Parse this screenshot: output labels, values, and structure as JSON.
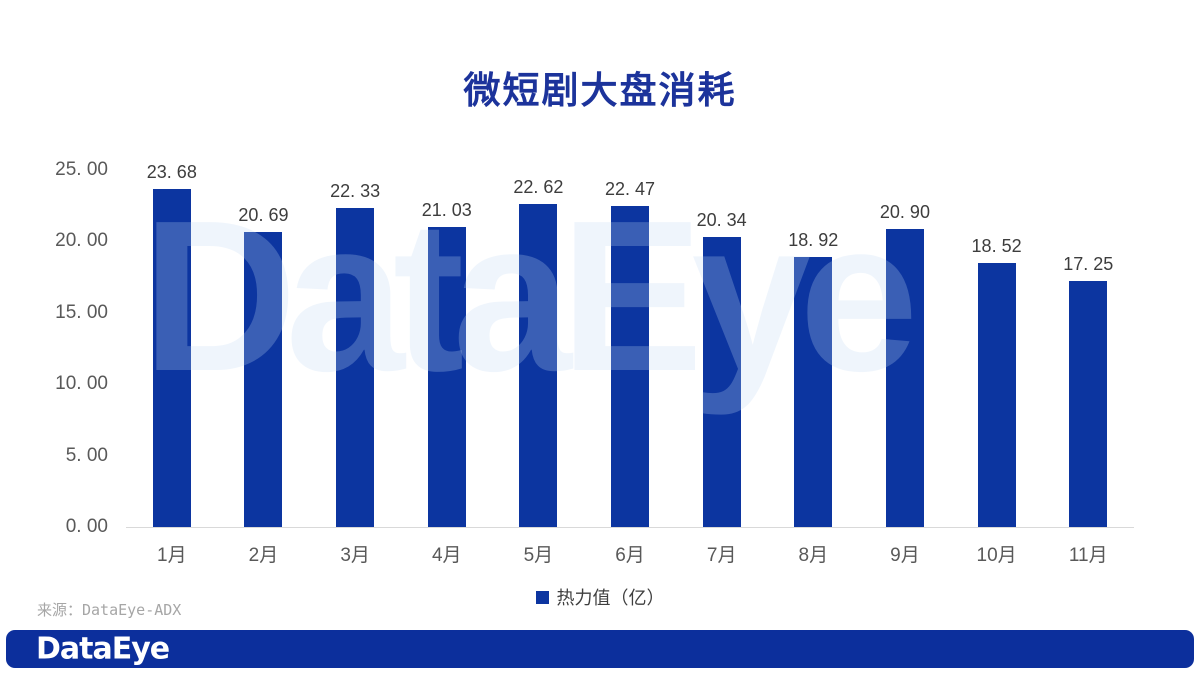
{
  "slide": {
    "title": "微短剧大盘消耗",
    "watermark_text": "DataEye",
    "source_note": "来源：DataEye-ADX",
    "footer_logo_text": "DataEye"
  },
  "legend": {
    "series_label": "热力值（亿）"
  },
  "y_axis": {
    "min": 0,
    "max": 25,
    "tick_labels": [
      "25. 00",
      "20. 00",
      "15. 00",
      "10. 00",
      "5. 00",
      "0. 00"
    ]
  },
  "chart_data": {
    "type": "bar",
    "title": "微短剧大盘消耗",
    "categories": [
      "1月",
      "2月",
      "3月",
      "4月",
      "5月",
      "6月",
      "7月",
      "8月",
      "9月",
      "10月",
      "11月"
    ],
    "series": [
      {
        "name": "热力值（亿）",
        "values": [
          23.68,
          20.69,
          22.33,
          21.03,
          22.62,
          22.47,
          20.34,
          18.92,
          20.9,
          18.52,
          17.25
        ]
      }
    ],
    "value_labels": [
      "23. 68",
      "20. 69",
      "22. 33",
      "21. 03",
      "22. 62",
      "22. 47",
      "20. 34",
      "18. 92",
      "20. 90",
      "18. 52",
      "17. 25"
    ],
    "xlabel": "",
    "ylabel": "",
    "ylim": [
      0,
      25
    ],
    "grid": false,
    "legend_position": "bottom"
  },
  "colors": {
    "bar": "#0c35a0",
    "title": "#1c339b",
    "banner": "#0c2f9c",
    "axis_text": "#595959",
    "value_text": "#3d3d3d",
    "legend_text": "#3f3f3f",
    "baseline": "#d9d9d9",
    "source_text": "#a6a6a6",
    "watermark": "rgba(195,218,244,0.26)"
  }
}
